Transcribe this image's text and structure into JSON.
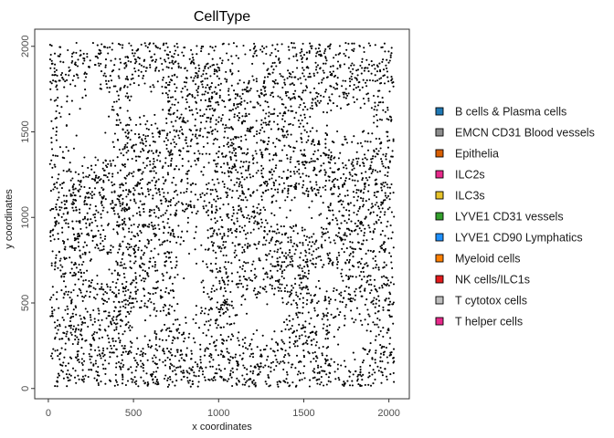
{
  "chart_data": {
    "type": "scatter",
    "title": "CellType",
    "xlabel": "x coordinates",
    "ylabel": "y coordinates",
    "xlim": [
      -80,
      2120
    ],
    "ylim": [
      -60,
      2100
    ],
    "x_ticks": [
      0,
      500,
      1000,
      1500,
      2000
    ],
    "y_ticks": [
      0,
      500,
      1000,
      1500,
      2000
    ],
    "x_tick_labels": [
      "0",
      "500",
      "1000",
      "1500",
      "2000"
    ],
    "y_tick_labels": [
      "0",
      "500",
      "1000",
      "1500",
      "2000"
    ],
    "grid": false,
    "legend_position": "right",
    "point_color": "#000000",
    "series": [
      {
        "name": "B cells & Plasma cells",
        "color": "#1f78b4"
      },
      {
        "name": "EMCN CD31 Blood vessels",
        "color": "#8c8c8c"
      },
      {
        "name": "Epithelia",
        "color": "#d95f02"
      },
      {
        "name": "ILC2s",
        "color": "#e7298a"
      },
      {
        "name": "ILC3s",
        "color": "#e6c229"
      },
      {
        "name": "LYVE1 CD31 vessels",
        "color": "#33a02c"
      },
      {
        "name": "LYVE1 CD90 Lymphatics",
        "color": "#1e90ff"
      },
      {
        "name": "Myeloid cells",
        "color": "#ff7f00"
      },
      {
        "name": "NK cells/ILC1s",
        "color": "#e31a1c"
      },
      {
        "name": "T cytotox cells",
        "color": "#bdbdbd"
      },
      {
        "name": "T helper cells",
        "color": "#e7298a"
      }
    ]
  }
}
